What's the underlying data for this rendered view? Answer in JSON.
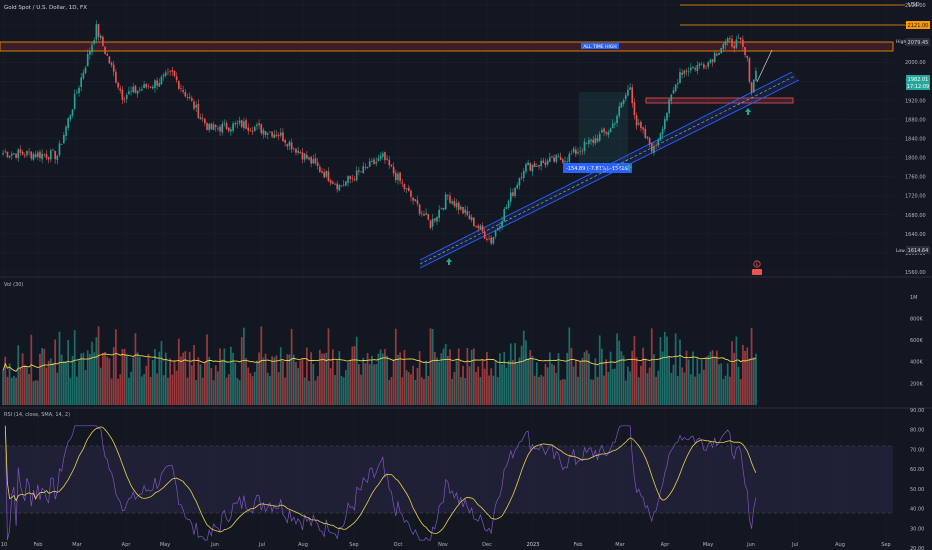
{
  "header": {
    "symbol_label": "Gold Spot / U.S. Dollar, 1D, FX",
    "currency": "USD"
  },
  "colors": {
    "bg": "#131722",
    "up": "#26a69a",
    "down": "#ef5350",
    "grid": "#1f2330",
    "text": "#b2b5be",
    "orange": "#ff9800",
    "blue": "#2962ff",
    "yellow": "#e8d44d",
    "rsi": "#7e57c2"
  },
  "price_axis": {
    "ticks": [
      "2120.00",
      "2080.00",
      "2040.00",
      "2000.00",
      "1960.00",
      "1920.00",
      "1880.00",
      "1840.00",
      "1800.00",
      "1760.00",
      "1720.00",
      "1680.00",
      "1640.00",
      "1600.00",
      "1560.00"
    ],
    "high_label": "High",
    "high_value": "2079.45",
    "low_label": "Low",
    "low_value": "1614.64",
    "orange_tag": "2121.00",
    "last_price": "1982.01",
    "countdown": "17:12:09"
  },
  "annotations": {
    "ath_label": "ALL TIME HIGH",
    "measure_label": "-154.89 (-7.81%) -15489",
    "event_marker": "E"
  },
  "volume": {
    "title": "Vol (30)",
    "ticks": [
      "1M",
      "800K",
      "600K",
      "400K",
      "200K"
    ]
  },
  "rsi": {
    "title": "RSI (14, close, SMA, 14, 2)",
    "ticks": [
      "90.00",
      "80.00",
      "70.00",
      "60.00",
      "50.00",
      "40.00",
      "30.00",
      "20.00"
    ]
  },
  "time_axis": {
    "labels": [
      "10",
      "Feb",
      "Mar",
      "Apr",
      "May",
      "Jun",
      "Jul",
      "Aug",
      "Sep",
      "Oct",
      "Nov",
      "Dec",
      "2023",
      "Feb",
      "Mar",
      "Apr",
      "May",
      "Jun",
      "Jul",
      "Aug",
      "Sep"
    ]
  },
  "chart_data": {
    "type": "candlestick",
    "instrument": "Gold Spot / U.S. Dollar, 1D, FX",
    "ylim": [
      1560,
      2120
    ],
    "waypoints": [
      {
        "x": "Jan",
        "close": 1810
      },
      {
        "x": "Feb",
        "close": 1805
      },
      {
        "x": "Mar",
        "close": 2070
      },
      {
        "x": "Mar",
        "close": 1930
      },
      {
        "x": "Apr",
        "close": 1950
      },
      {
        "x": "Apr",
        "close": 1975
      },
      {
        "x": "May",
        "close": 1860
      },
      {
        "x": "May",
        "close": 1870
      },
      {
        "x": "Jun",
        "close": 1850
      },
      {
        "x": "Jul",
        "close": 1740
      },
      {
        "x": "Aug",
        "close": 1800
      },
      {
        "x": "Sep",
        "close": 1660
      },
      {
        "x": "Oct",
        "close": 1720
      },
      {
        "x": "Oct",
        "close": 1625
      },
      {
        "x": "Nov",
        "close": 1780
      },
      {
        "x": "Dec",
        "close": 1800
      },
      {
        "x": "2023",
        "close": 1860
      },
      {
        "x": "Feb",
        "close": 1950
      },
      {
        "x": "Feb",
        "close": 1870
      },
      {
        "x": "Mar",
        "close": 1815
      },
      {
        "x": "Mar",
        "close": 1980
      },
      {
        "x": "Apr",
        "close": 2000
      },
      {
        "x": "Apr",
        "close": 2040
      },
      {
        "x": "May",
        "close": 2040
      },
      {
        "x": "May",
        "close": 2000
      },
      {
        "x": "Jun",
        "close": 1940
      },
      {
        "x": "Jun",
        "close": 1982
      }
    ],
    "volume_ylim": [
      0,
      1100000
    ],
    "rsi_ylim": [
      20,
      90
    ],
    "rsi_band": [
      30,
      70
    ]
  }
}
